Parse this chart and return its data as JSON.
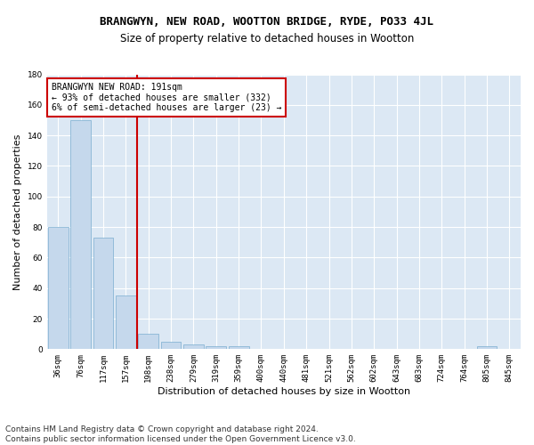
{
  "title": "BRANGWYN, NEW ROAD, WOOTTON BRIDGE, RYDE, PO33 4JL",
  "subtitle": "Size of property relative to detached houses in Wootton",
  "xlabel": "Distribution of detached houses by size in Wootton",
  "ylabel": "Number of detached properties",
  "categories": [
    "36sqm",
    "76sqm",
    "117sqm",
    "157sqm",
    "198sqm",
    "238sqm",
    "279sqm",
    "319sqm",
    "359sqm",
    "400sqm",
    "440sqm",
    "481sqm",
    "521sqm",
    "562sqm",
    "602sqm",
    "643sqm",
    "683sqm",
    "724sqm",
    "764sqm",
    "805sqm",
    "845sqm"
  ],
  "values": [
    80,
    150,
    73,
    35,
    10,
    5,
    3,
    2,
    2,
    0,
    0,
    0,
    0,
    0,
    0,
    0,
    0,
    0,
    0,
    2,
    0
  ],
  "bar_color": "#c5d8ec",
  "bar_edge_color": "#7aaed0",
  "vline_color": "#cc0000",
  "annotation_text": "BRANGWYN NEW ROAD: 191sqm\n← 93% of detached houses are smaller (332)\n6% of semi-detached houses are larger (23) →",
  "annotation_box_color": "white",
  "annotation_box_edge": "#cc0000",
  "ylim": [
    0,
    180
  ],
  "yticks": [
    0,
    20,
    40,
    60,
    80,
    100,
    120,
    140,
    160,
    180
  ],
  "footer_text": "Contains HM Land Registry data © Crown copyright and database right 2024.\nContains public sector information licensed under the Open Government Licence v3.0.",
  "fig_bg_color": "#ffffff",
  "plot_bg_color": "#dce8f4",
  "title_fontsize": 9,
  "subtitle_fontsize": 8.5,
  "tick_fontsize": 6.5,
  "ylabel_fontsize": 8,
  "xlabel_fontsize": 8,
  "footer_fontsize": 6.5
}
